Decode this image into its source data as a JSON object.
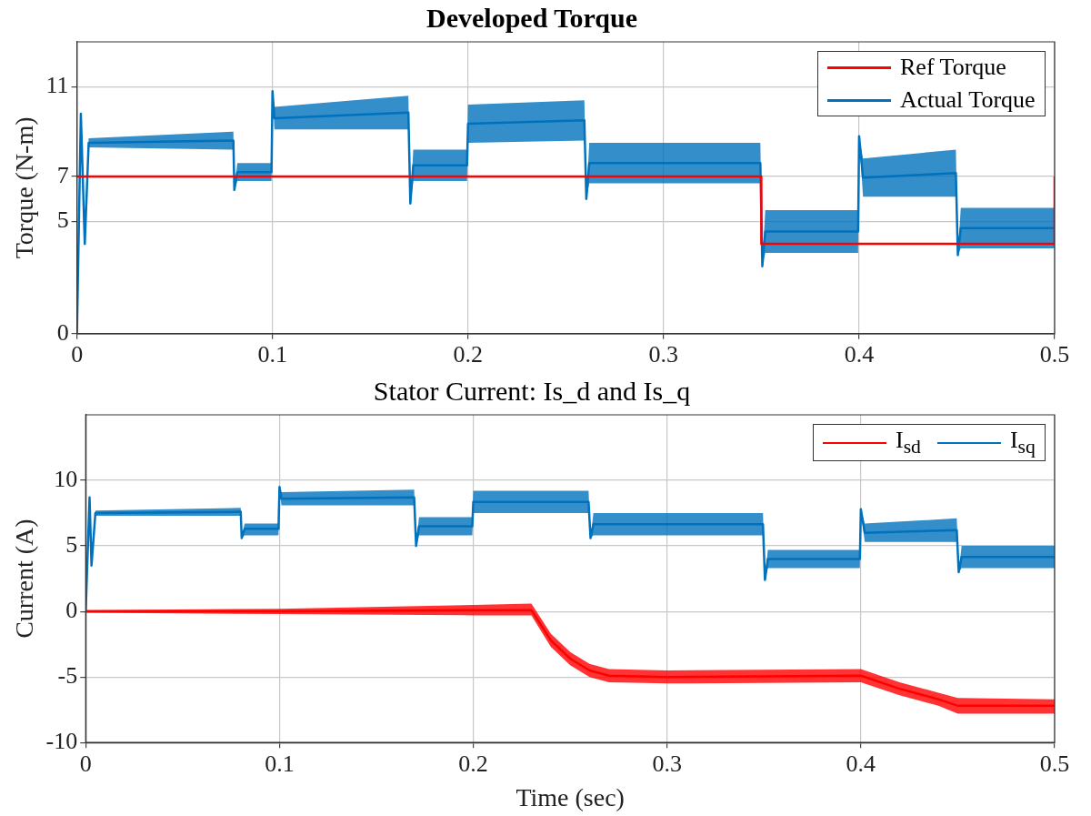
{
  "chart_data": [
    {
      "type": "line",
      "title": "Developed Torque",
      "ylabel": "Torque (N-m)",
      "xlim": [
        0,
        0.5
      ],
      "xticks": [
        0,
        0.1,
        0.2,
        0.3,
        0.4,
        0.5
      ],
      "ylim": [
        0,
        13
      ],
      "yticks": [
        0,
        5,
        7,
        11
      ],
      "grid": true,
      "legend": "top right",
      "marker": "none",
      "line_style": "solid",
      "series": [
        {
          "name": "Ref Torque",
          "color": "#ff0000",
          "x": [
            0,
            0.35,
            0.35,
            0.5,
            0.5
          ],
          "values": [
            7,
            7,
            4,
            4,
            7
          ]
        },
        {
          "name": "Actual Torque",
          "color": "#0072bd",
          "x": [
            0,
            0.002,
            0.004,
            0.006,
            0.08,
            0.0805,
            0.082,
            0.0995,
            0.1,
            0.101,
            0.1695,
            0.1705,
            0.172,
            0.1995,
            0.2,
            0.2595,
            0.2605,
            0.262,
            0.3495,
            0.3505,
            0.352,
            0.3995,
            0.4,
            0.402,
            0.4495,
            0.4505,
            0.452,
            0.5
          ],
          "values": [
            0,
            9.8,
            4,
            8.5,
            8.6,
            6.4,
            7.2,
            7.2,
            10.8,
            9.6,
            9.85,
            5.8,
            7.5,
            7.5,
            9.35,
            9.5,
            6,
            7.6,
            7.6,
            3,
            4.55,
            4.55,
            8.8,
            6.95,
            7.15,
            3.5,
            4.7,
            4.7
          ],
          "lower": [
            0,
            9.8,
            4,
            8.3,
            8.2,
            6.4,
            6.8,
            6.8,
            10.8,
            9.1,
            9.1,
            5.8,
            6.8,
            6.8,
            8.5,
            8.6,
            6,
            6.7,
            6.7,
            3,
            3.6,
            3.6,
            8.8,
            6.1,
            6.1,
            3.5,
            3.8,
            3.8
          ],
          "upper": [
            0,
            9.8,
            4,
            8.7,
            9,
            6.4,
            7.6,
            7.6,
            10.8,
            10.1,
            10.6,
            5.8,
            8.2,
            8.2,
            10.2,
            10.4,
            6,
            8.5,
            8.5,
            3,
            5.5,
            5.5,
            8.8,
            7.8,
            8.2,
            3.5,
            5.6,
            5.6
          ]
        }
      ]
    },
    {
      "type": "line",
      "title": "Stator Current: Is_d and Is_q",
      "xlabel": "Time (sec)",
      "ylabel": "Current (A)",
      "xlim": [
        0,
        0.5
      ],
      "xticks": [
        0,
        0.1,
        0.2,
        0.3,
        0.4,
        0.5
      ],
      "ylim": [
        -10,
        15
      ],
      "yticks": [
        -10,
        -5,
        0,
        5,
        10
      ],
      "grid": true,
      "legend": "top right",
      "marker": "none",
      "line_style": "solid",
      "series": [
        {
          "name": "I$_{sd}$",
          "color": "#ff0000",
          "x": [
            0,
            0.1,
            0.2,
            0.23,
            0.24,
            0.25,
            0.26,
            0.27,
            0.3,
            0.4,
            0.42,
            0.44,
            0.45,
            0.5
          ],
          "values": [
            0,
            0,
            0.1,
            0.1,
            -2.2,
            -3.6,
            -4.5,
            -4.9,
            -5,
            -4.9,
            -5.9,
            -6.7,
            -7.2,
            -7.2
          ],
          "lower": [
            -0.1,
            -0.2,
            -0.3,
            -0.3,
            -2.7,
            -4.1,
            -5,
            -5.4,
            -5.5,
            -5.4,
            -6.4,
            -7.2,
            -7.8,
            -7.8
          ],
          "upper": [
            0.1,
            0.2,
            0.5,
            0.6,
            -1.7,
            -3.1,
            -4,
            -4.4,
            -4.5,
            -4.4,
            -5.4,
            -6.2,
            -6.6,
            -6.7
          ]
        },
        {
          "name": "I$_{sq}$",
          "color": "#0072bd",
          "x": [
            0,
            0.002,
            0.003,
            0.005,
            0.08,
            0.0805,
            0.082,
            0.0995,
            0.1,
            0.101,
            0.1695,
            0.1705,
            0.172,
            0.1995,
            0.2,
            0.2595,
            0.2605,
            0.262,
            0.3495,
            0.3505,
            0.352,
            0.3995,
            0.4,
            0.402,
            0.4495,
            0.4505,
            0.452,
            0.5
          ],
          "values": [
            0,
            8.7,
            3.5,
            7.5,
            7.6,
            5.6,
            6.3,
            6.3,
            9.5,
            8.6,
            8.7,
            5,
            6.5,
            6.5,
            8.35,
            8.35,
            5.6,
            6.65,
            6.65,
            2.4,
            4,
            4,
            7.8,
            6,
            6.2,
            3,
            4.15,
            4.15
          ],
          "lower": [
            0,
            8.7,
            3.5,
            7.3,
            7.3,
            5.6,
            5.8,
            5.8,
            9.5,
            8.1,
            8.1,
            5,
            5.8,
            5.8,
            7.5,
            7.5,
            5.6,
            5.8,
            5.8,
            2.4,
            3.3,
            3.3,
            7.8,
            5.3,
            5.3,
            3,
            3.3,
            3.3
          ],
          "upper": [
            0,
            8.7,
            3.5,
            7.7,
            7.9,
            5.6,
            6.7,
            6.7,
            9.5,
            9.1,
            9.3,
            5,
            7.2,
            7.2,
            9.2,
            9.2,
            5.6,
            7.5,
            7.5,
            2.4,
            4.7,
            4.7,
            7.8,
            6.7,
            7.1,
            3,
            5,
            5
          ]
        }
      ]
    }
  ]
}
